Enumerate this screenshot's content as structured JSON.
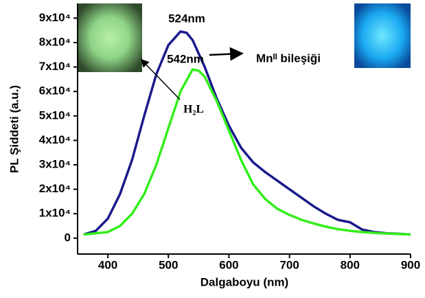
{
  "chart_data": {
    "type": "line",
    "x_label": "Dalgaboyu (nm)",
    "y_label": "PL Şiddeti (a.u.)",
    "xlim": [
      350,
      900
    ],
    "ylim": [
      -6500,
      96000
    ],
    "xticks": [
      400,
      500,
      600,
      700,
      800,
      900
    ],
    "yticks": [
      0,
      {
        "value": 10000,
        "label": "1x10⁴"
      },
      {
        "value": 20000,
        "label": "2x10⁴"
      },
      {
        "value": 30000,
        "label": "3x10⁴"
      },
      {
        "value": 40000,
        "label": "4x10⁴"
      },
      {
        "value": 50000,
        "label": "5x10⁴"
      },
      {
        "value": 60000,
        "label": "6x10⁴"
      },
      {
        "value": 70000,
        "label": "7x10⁴"
      },
      {
        "value": 80000,
        "label": "8x10⁴"
      },
      {
        "value": 90000,
        "label": "9x10⁴"
      }
    ],
    "annotations": [
      "524nm",
      "542nm",
      "Mnᴵᴵ bileşiği",
      "H₂L"
    ],
    "series": [
      {
        "color": "#1a1a8c",
        "x": [
          360,
          380,
          400,
          420,
          440,
          460,
          480,
          500,
          520,
          530,
          540,
          560,
          580,
          600,
          620,
          640,
          660,
          680,
          700,
          720,
          740,
          760,
          780,
          800,
          810,
          820,
          840,
          860,
          880,
          900
        ],
        "values": [
          1500,
          3000,
          8000,
          18000,
          32000,
          50000,
          67000,
          79000,
          84500,
          84000,
          81000,
          70000,
          57000,
          46000,
          37000,
          31000,
          27000,
          23500,
          20000,
          16500,
          13000,
          10000,
          7500,
          6500,
          5000,
          3500,
          2500,
          2000,
          1800,
          1500
        ]
      },
      {
        "color": "#33ee1a",
        "x": [
          360,
          400,
          420,
          440,
          460,
          480,
          500,
          520,
          540,
          550,
          560,
          580,
          600,
          620,
          640,
          660,
          680,
          700,
          720,
          740,
          760,
          780,
          800,
          820,
          850,
          900
        ],
        "values": [
          1500,
          2500,
          5000,
          10000,
          18000,
          30000,
          45000,
          60000,
          69000,
          68500,
          66000,
          56000,
          44000,
          32000,
          22000,
          16000,
          12000,
          9500,
          7500,
          6000,
          4700,
          3700,
          3000,
          2500,
          2000,
          1500
        ]
      }
    ]
  }
}
